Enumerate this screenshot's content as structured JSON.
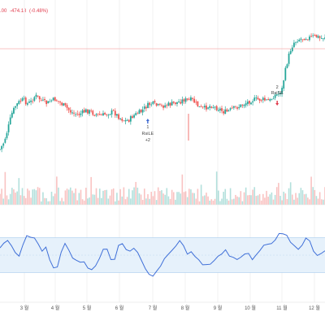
{
  "header": {
    "price_fragment": ".00",
    "change": "-474.18",
    "change_pct": "(-0.48%)"
  },
  "colors": {
    "up": "#26a69a",
    "down": "#ef5350",
    "indicator_line": "#3f6fd8",
    "indicator_band": "#e6f1fb",
    "price_line": "#f28b8b"
  },
  "chart_data": {
    "type": "candlestick",
    "x_tick_labels": [
      "3 월",
      "4 월",
      "5 월",
      "6 월",
      "7 월",
      "8 월",
      "9 월",
      "10 월",
      "11 월",
      "12 월"
    ],
    "price_series": [
      175,
      168,
      155,
      140,
      132,
      128,
      126,
      130,
      128,
      122,
      125,
      128,
      130,
      127,
      126,
      128,
      131,
      134,
      138,
      140,
      141,
      139,
      137,
      138,
      140,
      141,
      142,
      140,
      139,
      138,
      142,
      145,
      147,
      146,
      142,
      140,
      138,
      134,
      131,
      130,
      132,
      133,
      132,
      131,
      130,
      129,
      128,
      126,
      127,
      126,
      130,
      134,
      135,
      133,
      132,
      134,
      135,
      138,
      138,
      136,
      134,
      133,
      131,
      129,
      127,
      126,
      126,
      126,
      127,
      127,
      122,
      121,
      116,
      95,
      79,
      70,
      67,
      66,
      65,
      65,
      64,
      64,
      66,
      64
    ],
    "signals": [
      {
        "num": "1",
        "label": "RsiLE",
        "sub": "+2",
        "x_tick_index": 3.85,
        "direction": "up"
      },
      {
        "num": "2",
        "label": "RsiSE",
        "sub": "",
        "x_tick_index": 7.85,
        "direction": "down"
      }
    ],
    "indicator": {
      "band_upper": 70,
      "band_lower": 30,
      "values": [
        57,
        64,
        67,
        59,
        53,
        50,
        60,
        73,
        69,
        70,
        63,
        56,
        58,
        45,
        36,
        35,
        52,
        64,
        57,
        47,
        44,
        43,
        42,
        35,
        33,
        36,
        48,
        55,
        58,
        45,
        44,
        60,
        63,
        55,
        55,
        57,
        53,
        44,
        34,
        28,
        25,
        30,
        38,
        45,
        52,
        55,
        62,
        65,
        59,
        52,
        53,
        47,
        43,
        40,
        41,
        39,
        42,
        47,
        53,
        56,
        50,
        47,
        45,
        48,
        53,
        52,
        46,
        49,
        57,
        63,
        62,
        62,
        67,
        73,
        75,
        73,
        65,
        62,
        58,
        61,
        68,
        67,
        56,
        51,
        52,
        55
      ]
    }
  }
}
